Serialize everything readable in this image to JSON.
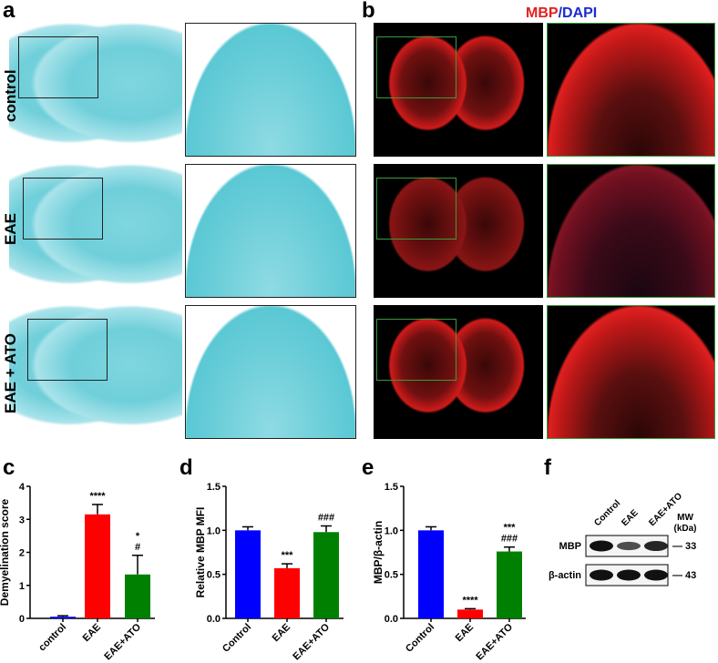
{
  "panel_a": {
    "label": "a",
    "rows": [
      "control",
      "EAE",
      "EAE + ATO"
    ]
  },
  "panel_b": {
    "label": "b",
    "title_mbp": "MBP",
    "title_sep": "/",
    "title_dapi": "DAPI",
    "mbp_color": "#e02020",
    "dapi_color": "#1a2bd0"
  },
  "colors": {
    "control": "#0000ff",
    "EAE": "#ff0000",
    "EAE+ATO": "#008000",
    "luxol": "#6fcfda"
  },
  "chart_data": [
    {
      "panel": "c",
      "type": "bar",
      "categories": [
        "control",
        "EAE",
        "EAE+ATO"
      ],
      "values": [
        0.05,
        3.15,
        1.33
      ],
      "errors": [
        0.03,
        0.3,
        0.58
      ],
      "annotations": [
        "",
        "****",
        "*\n#"
      ],
      "ylabel": "Demyelination score",
      "ylim": [
        0,
        4
      ],
      "yticks": [
        "0",
        "1",
        "2",
        "3",
        "4"
      ],
      "tickvals": [
        0,
        1,
        2,
        3,
        4
      ]
    },
    {
      "panel": "d",
      "type": "bar",
      "categories": [
        "Control",
        "EAE",
        "EAE+ATO"
      ],
      "values": [
        1.0,
        0.57,
        0.98
      ],
      "errors": [
        0.04,
        0.05,
        0.07
      ],
      "annotations": [
        "",
        "***",
        "###"
      ],
      "ylabel": "Relative MBP MFI",
      "ylim": [
        0,
        1.5
      ],
      "yticks": [
        "0.0",
        "0.5",
        "1.0",
        "1.5"
      ],
      "tickvals": [
        0,
        0.5,
        1,
        1.5
      ]
    },
    {
      "panel": "e",
      "type": "bar",
      "categories": [
        "Control",
        "EAE",
        "EAE+ATO"
      ],
      "values": [
        1.0,
        0.1,
        0.76
      ],
      "errors": [
        0.04,
        0.01,
        0.05
      ],
      "annotations": [
        "",
        "****",
        "***\n###"
      ],
      "ylabel": "MBP/β-actin",
      "ylim": [
        0,
        1.5
      ],
      "yticks": [
        "0.0",
        "0.5",
        "1.0",
        "1.5"
      ],
      "tickvals": [
        0,
        0.5,
        1,
        1.5
      ]
    }
  ],
  "panel_f": {
    "label": "f",
    "lanes": [
      "Control",
      "EAE",
      "EAE+ATO"
    ],
    "mw_title": "MW",
    "mw_unit": "(kDa)",
    "bands": [
      {
        "name": "MBP",
        "mw": "— 33",
        "intensity": [
          1,
          0.55,
          0.85
        ]
      },
      {
        "name": "β-actin",
        "mw": "— 43",
        "intensity": [
          1,
          1,
          1
        ]
      }
    ]
  }
}
